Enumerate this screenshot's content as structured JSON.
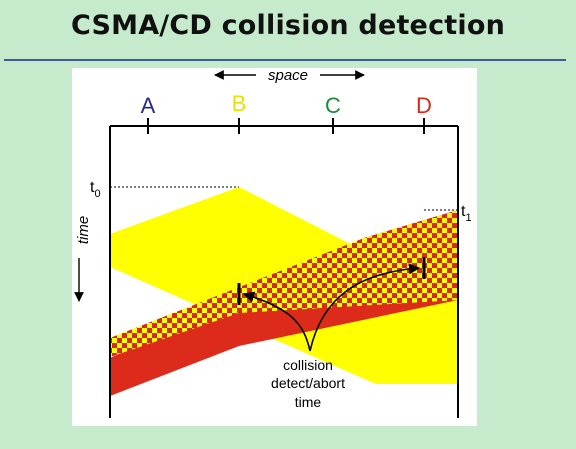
{
  "slide": {
    "title": "CSMA/CD collision detection"
  },
  "diagram": {
    "space_label": "space",
    "time_label": "time",
    "stations": [
      {
        "id": "A",
        "label": "A",
        "color": "#2a2a8c"
      },
      {
        "id": "B",
        "label": "B",
        "color": "#e9e100"
      },
      {
        "id": "C",
        "label": "C",
        "color": "#1f8a3b"
      },
      {
        "id": "D",
        "label": "D",
        "color": "#d52b1e"
      }
    ],
    "t0": {
      "base": "t",
      "sub": "0"
    },
    "t1": {
      "base": "t",
      "sub": "1"
    },
    "annotation": {
      "line1": "collision",
      "line2": "detect/abort",
      "line3": "time"
    },
    "colors": {
      "transmission_b": "#ffff00",
      "transmission_d": "#dd2b1b",
      "collision_pattern": "#d42a1c / #ffff00",
      "background": "#c6ebcc",
      "title_rule": "#3e5d93"
    }
  }
}
